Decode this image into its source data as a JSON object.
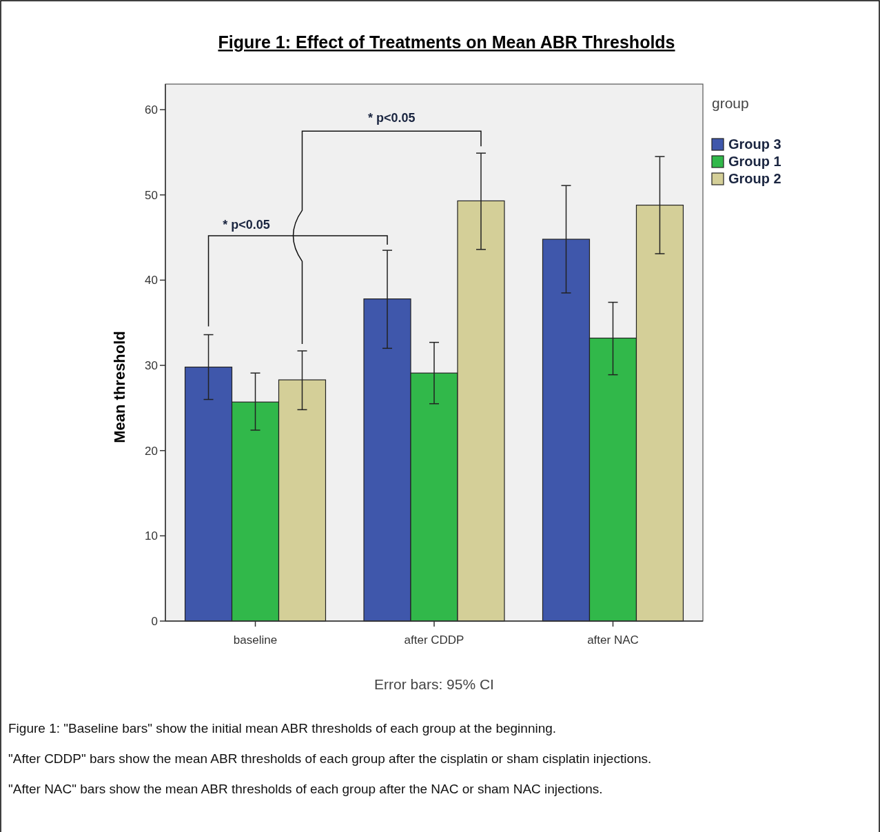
{
  "chart_data": {
    "type": "bar",
    "title": "Figure 1: Effect of Treatments on Mean ABR Thresholds",
    "ylabel": "Mean threshold",
    "legend_title": "group",
    "legend": "right",
    "categories": [
      "baseline",
      "after CDDP",
      "after NAC"
    ],
    "series": [
      {
        "name": "Group 3",
        "color": "#3f57ab",
        "values": [
          29.8,
          37.8,
          44.8
        ],
        "errors": [
          [
            26.0,
            33.6
          ],
          [
            32.0,
            43.5
          ],
          [
            38.5,
            51.1
          ]
        ]
      },
      {
        "name": "Group 1",
        "color": "#31b84a",
        "values": [
          25.7,
          29.1,
          33.2
        ],
        "errors": [
          [
            22.4,
            29.1
          ],
          [
            25.5,
            32.7
          ],
          [
            28.9,
            37.4
          ]
        ]
      },
      {
        "name": "Group 2",
        "color": "#d4cf98",
        "values": [
          28.3,
          49.3,
          48.8
        ],
        "errors": [
          [
            24.8,
            31.7
          ],
          [
            43.6,
            54.9
          ],
          [
            43.1,
            54.5
          ]
        ]
      }
    ],
    "ylim": [
      0,
      63
    ],
    "yticks": [
      0,
      10,
      20,
      30,
      40,
      50,
      60
    ],
    "grid": false,
    "annotations": [
      "* p<0.05",
      "* p<0.05",
      "Error bars: 95% CI",
      "Figure 1: \"Baseline bars\" show the initial mean ABR thresholds of each group at the beginning.",
      "\"After CDDP\" bars show the mean ABR thresholds of each group after the cisplatin or sham cisplatin injections.",
      "\"After NAC\" bars show the mean ABR thresholds of each group after the NAC or sham NAC injections."
    ]
  }
}
